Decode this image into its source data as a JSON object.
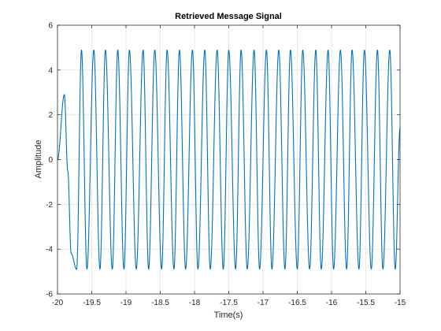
{
  "chart_data": {
    "type": "line",
    "title": "Retrieved Message Signal",
    "xlabel": "Time(s)",
    "ylabel": "Amplitude",
    "xlim": [
      -20,
      -15
    ],
    "ylim": [
      -6,
      6
    ],
    "x_ticks": [
      -20,
      -19.5,
      -19,
      -18.5,
      -18,
      -17.5,
      -17,
      -16.5,
      -16,
      -15.5,
      -15
    ],
    "x_tick_labels": [
      "-20",
      "-19.5",
      "-19",
      "-18.5",
      "-18",
      "-17.5",
      "-17",
      "-16.5",
      "-16",
      "-15.5",
      "-15"
    ],
    "y_ticks": [
      -6,
      -4,
      -2,
      0,
      2,
      4,
      6
    ],
    "y_tick_labels": [
      "-6",
      "-4",
      "-2",
      "0",
      "2",
      "4",
      "6"
    ],
    "grid": true,
    "series": [
      {
        "color": "#0072BD",
        "x": [
          -20.0,
          -19.9,
          -19.85,
          -19.8,
          -19.72,
          -19.65,
          -19.57,
          -19.47,
          -19.38,
          -19.3,
          -19.2,
          -19.12,
          -19.03,
          -18.95,
          -18.85,
          -18.75,
          -18.67,
          -18.58,
          -18.48,
          -18.4,
          -18.3,
          -18.22,
          -18.13,
          -18.03,
          -17.95,
          -17.85,
          -17.77,
          -17.67,
          -17.58,
          -17.5,
          -17.4,
          -17.32,
          -17.23,
          -17.13,
          -17.05,
          -16.95,
          -16.87,
          -16.77,
          -16.68,
          -16.6,
          -16.5,
          -16.42,
          -16.32,
          -16.23,
          -16.15,
          -16.05,
          -15.97,
          -15.87,
          -15.78,
          -15.7,
          -15.6,
          -15.52,
          -15.42,
          -15.33,
          -15.25,
          -15.15,
          -15.07,
          -15.0
        ],
        "y": [
          0.0,
          2.9,
          -0.5,
          -4.2,
          -4.9,
          4.9,
          -4.9,
          4.9,
          -4.9,
          4.9,
          -4.9,
          4.9,
          -4.9,
          4.9,
          -4.9,
          4.9,
          -4.9,
          4.9,
          -4.9,
          4.9,
          -4.9,
          4.9,
          -4.9,
          4.9,
          -4.9,
          4.9,
          -4.9,
          4.9,
          -4.9,
          4.9,
          -4.9,
          4.9,
          -4.9,
          4.9,
          -4.9,
          4.9,
          -4.9,
          4.9,
          -4.9,
          4.9,
          -4.9,
          4.9,
          -4.9,
          4.9,
          -4.9,
          4.9,
          -4.9,
          4.9,
          -4.9,
          4.9,
          -4.9,
          4.9,
          -4.9,
          4.9,
          -4.9,
          4.9,
          -4.9,
          1.4
        ]
      }
    ]
  }
}
